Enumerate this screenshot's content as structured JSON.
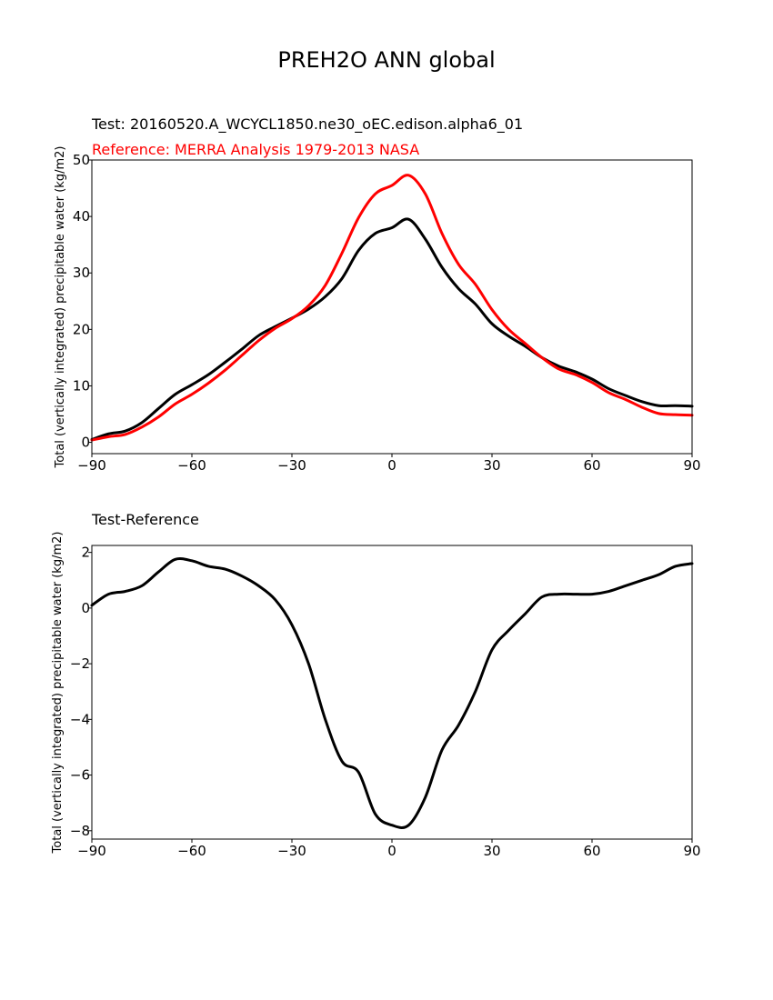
{
  "figure": {
    "title": "PREH2O ANN global"
  },
  "chart_data": [
    {
      "type": "line",
      "test_label": "Test: 20160520.A_WCYCL1850.ne30_oEC.edison.alpha6_01",
      "reference_label": "Reference: MERRA Analysis 1979-2013 NASA",
      "xlabel": "",
      "ylabel": "Total (vertically integrated) precipitable water (kg/m2)",
      "xlim": [
        -90,
        90
      ],
      "ylim": [
        -2,
        50
      ],
      "xticks": [
        -90,
        -60,
        -30,
        0,
        30,
        60,
        90
      ],
      "yticks": [
        0,
        10,
        20,
        30,
        40,
        50
      ],
      "grid": false,
      "x": [
        -90,
        -85,
        -80,
        -75,
        -70,
        -65,
        -60,
        -55,
        -50,
        -45,
        -40,
        -35,
        -30,
        -25,
        -20,
        -15,
        -10,
        -5,
        0,
        5,
        10,
        15,
        20,
        25,
        30,
        35,
        40,
        45,
        50,
        55,
        60,
        65,
        70,
        75,
        80,
        85,
        90
      ],
      "series": [
        {
          "name": "Test",
          "color": "#000000",
          "values": [
            0.5,
            1.5,
            2.0,
            3.5,
            6.0,
            8.5,
            10.2,
            12.0,
            14.2,
            16.5,
            18.9,
            20.5,
            22.0,
            23.6,
            25.8,
            29.0,
            34.0,
            37.0,
            38.0,
            39.5,
            36.0,
            31.0,
            27.2,
            24.5,
            21.0,
            18.8,
            17.0,
            15.0,
            13.5,
            12.5,
            11.2,
            9.5,
            8.3,
            7.2,
            6.5,
            6.5,
            6.4
          ]
        },
        {
          "name": "Reference",
          "color": "#ff0000",
          "values": [
            0.4,
            1.0,
            1.4,
            2.7,
            4.5,
            6.8,
            8.5,
            10.5,
            12.8,
            15.4,
            18.0,
            20.2,
            21.9,
            24.2,
            27.8,
            33.5,
            39.8,
            44.0,
            45.5,
            47.3,
            44.0,
            37.0,
            31.5,
            28.0,
            23.5,
            20.0,
            17.5,
            15.0,
            13.0,
            12.0,
            10.6,
            8.8,
            7.6,
            6.2,
            5.1,
            4.9,
            4.8
          ]
        }
      ]
    },
    {
      "type": "line",
      "title": "Test-Reference",
      "xlabel": "",
      "ylabel": "Total (vertically integrated) precipitable water (kg/m2)",
      "xlim": [
        -90,
        90
      ],
      "ylim": [
        -8.3,
        2.25
      ],
      "xticks": [
        -90,
        -60,
        -30,
        0,
        30,
        60,
        90
      ],
      "yticks": [
        -8,
        -6,
        -4,
        -2,
        0,
        2
      ],
      "grid": false,
      "x": [
        -90,
        -85,
        -80,
        -75,
        -70,
        -65,
        -60,
        -55,
        -50,
        -45,
        -40,
        -35,
        -30,
        -25,
        -20,
        -15,
        -10,
        -5,
        0,
        5,
        10,
        15,
        20,
        25,
        30,
        35,
        40,
        45,
        50,
        55,
        60,
        65,
        70,
        75,
        80,
        85,
        90
      ],
      "series": [
        {
          "name": "Test-Reference",
          "color": "#000000",
          "values": [
            0.1,
            0.5,
            0.6,
            0.8,
            1.3,
            1.75,
            1.7,
            1.5,
            1.4,
            1.15,
            0.8,
            0.3,
            -0.6,
            -2.0,
            -4.0,
            -5.5,
            -5.9,
            -7.4,
            -7.8,
            -7.8,
            -6.8,
            -5.1,
            -4.2,
            -3.0,
            -1.5,
            -0.8,
            -0.2,
            0.4,
            0.5,
            0.5,
            0.5,
            0.6,
            0.8,
            1.0,
            1.2,
            1.5,
            1.6
          ]
        }
      ]
    }
  ]
}
